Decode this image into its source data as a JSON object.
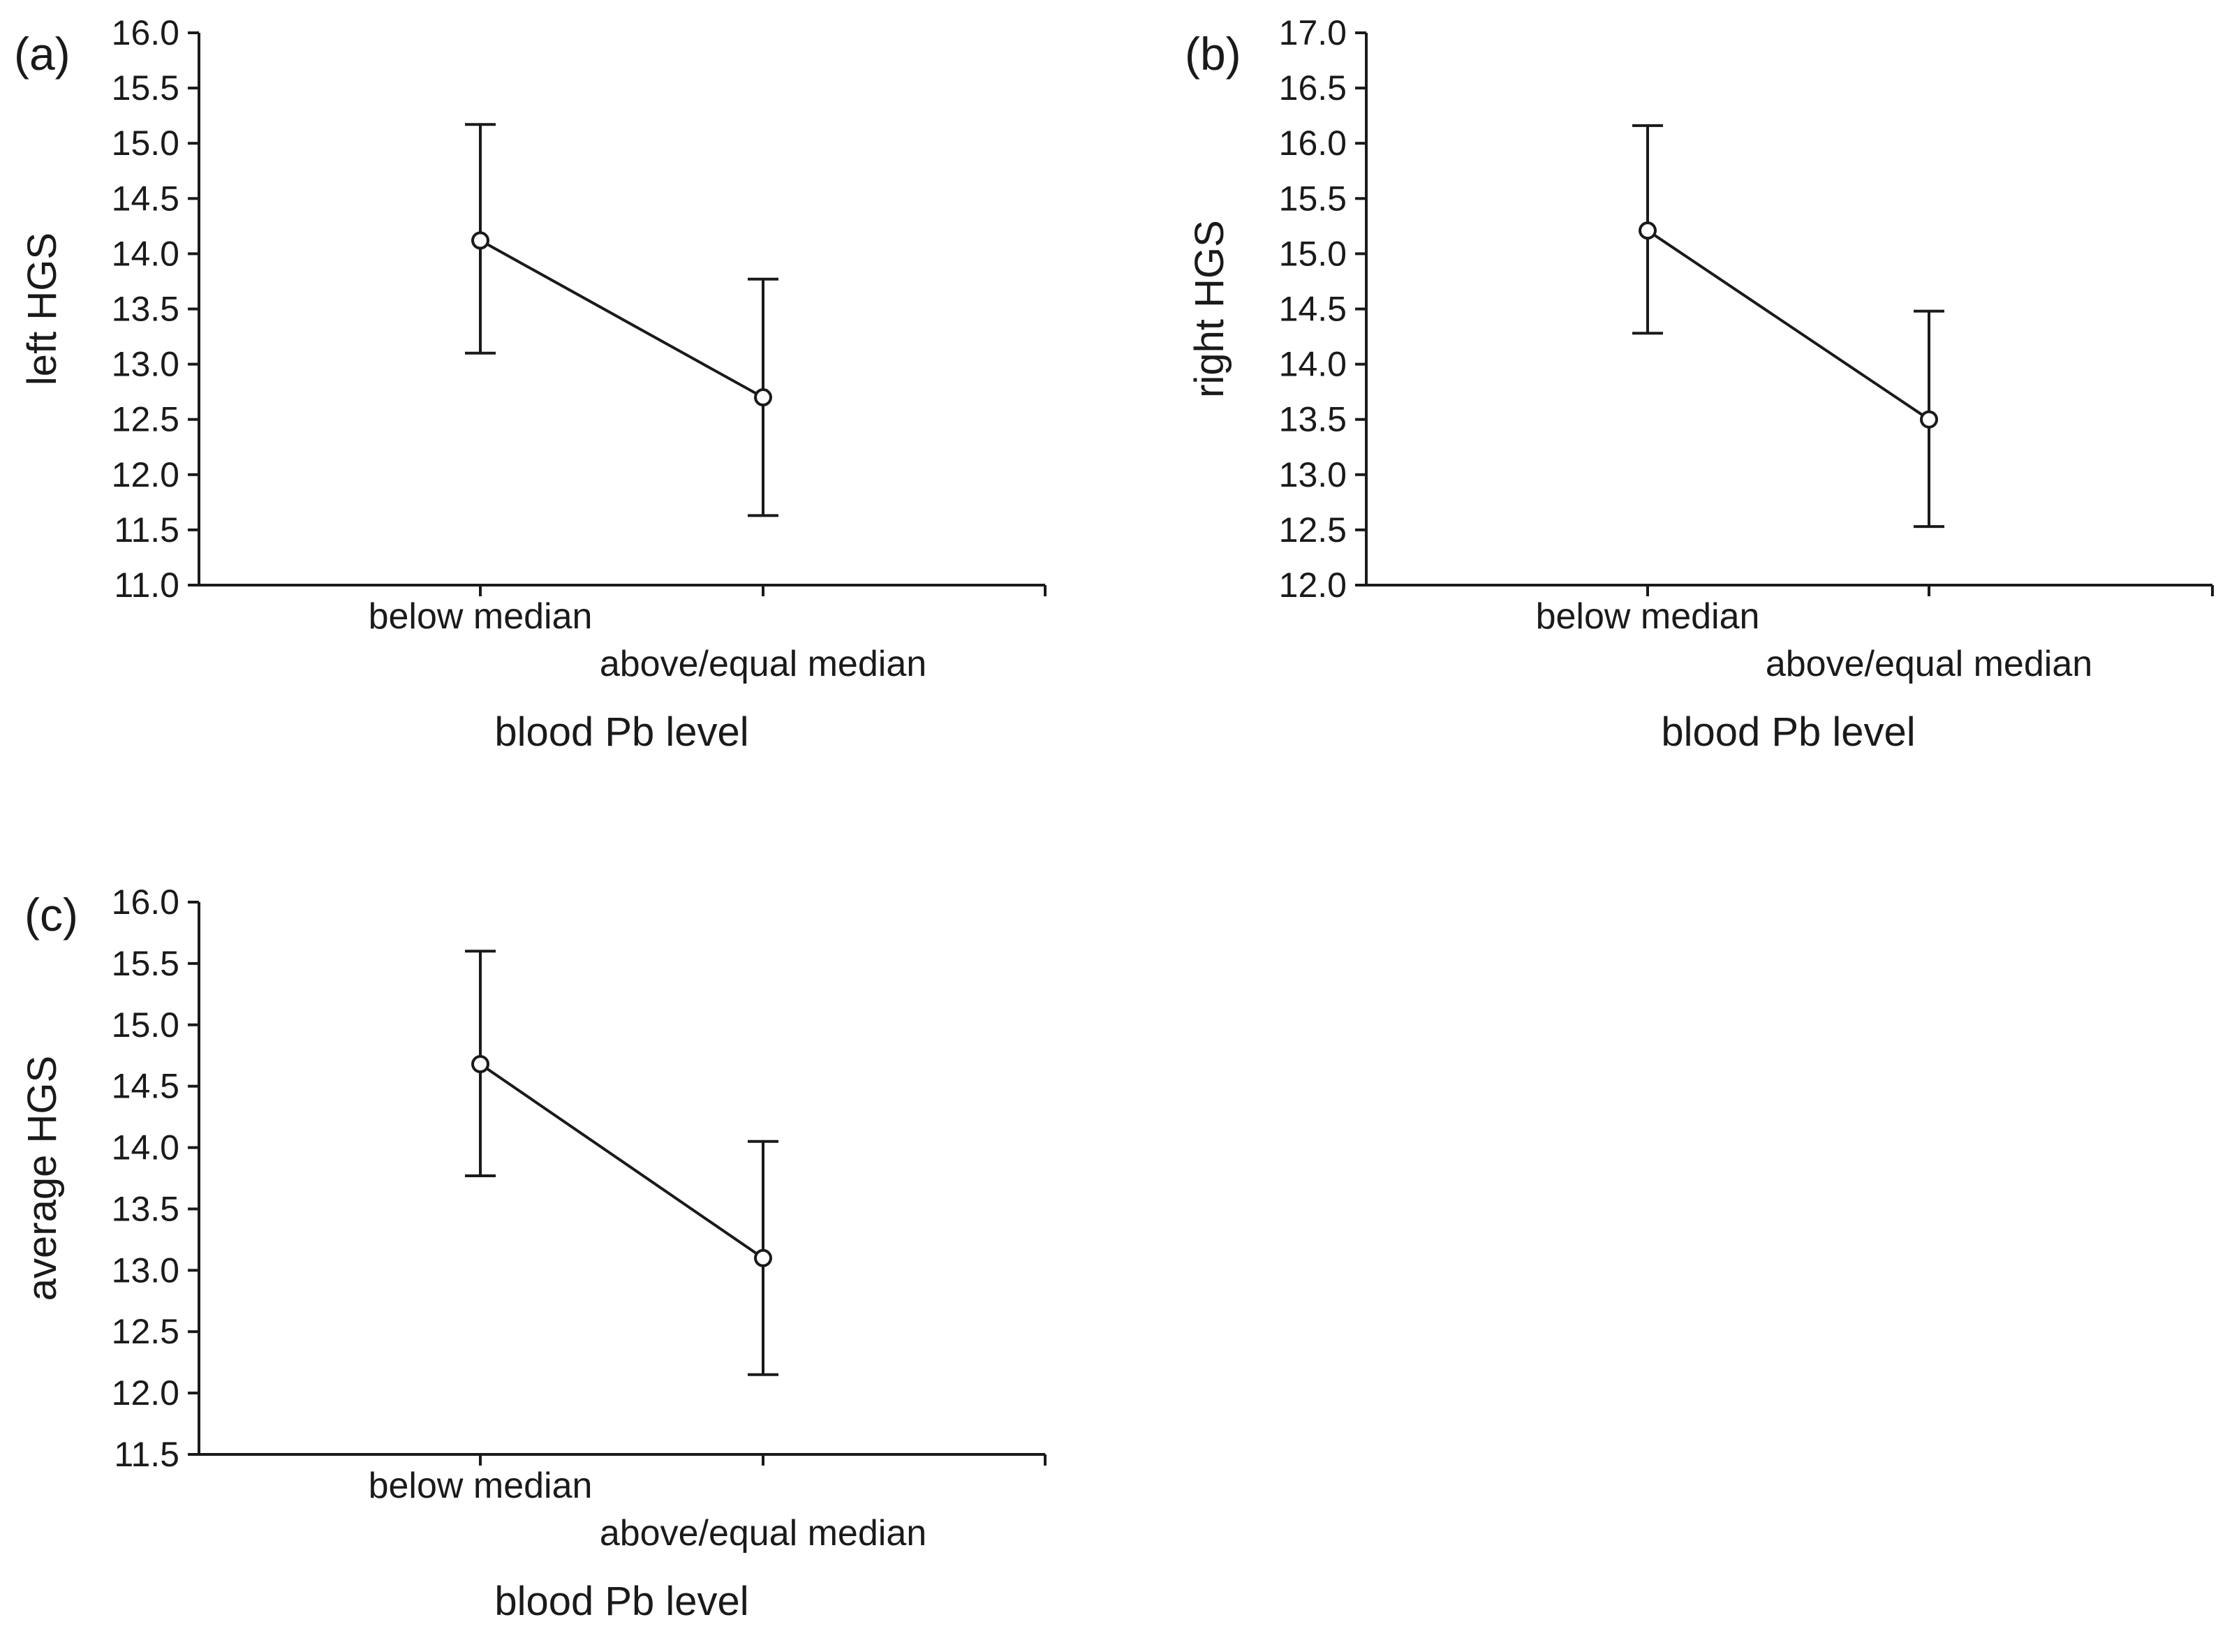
{
  "chart_data": [
    {
      "panel_label": "(a)",
      "type": "line",
      "categories": [
        "below median",
        "above/equal median"
      ],
      "series": [
        {
          "name": "left HGS",
          "values": [
            14.12,
            12.7
          ],
          "error_low": [
            13.1,
            11.63
          ],
          "error_high": [
            15.17,
            13.77
          ]
        }
      ],
      "xlabel": "blood Pb level",
      "ylabel": "left HGS",
      "ylim": [
        11.0,
        16.0
      ],
      "yticks": [
        "11.0",
        "11.5",
        "12.0",
        "12.5",
        "13.0",
        "13.5",
        "14.0",
        "14.5",
        "15.0",
        "15.5",
        "16.0"
      ],
      "grid": false
    },
    {
      "panel_label": "(b)",
      "type": "line",
      "categories": [
        "below median",
        "above/equal median"
      ],
      "series": [
        {
          "name": "right HGS",
          "values": [
            15.21,
            13.5
          ],
          "error_low": [
            14.28,
            12.53
          ],
          "error_high": [
            16.16,
            14.48
          ]
        }
      ],
      "xlabel": "blood Pb level",
      "ylabel": "right HGS",
      "ylim": [
        12.0,
        17.0
      ],
      "yticks": [
        "12.0",
        "12.5",
        "13.0",
        "13.5",
        "14.0",
        "14.5",
        "15.0",
        "15.5",
        "16.0",
        "16.5",
        "17.0"
      ],
      "grid": false
    },
    {
      "panel_label": "(c)",
      "type": "line",
      "categories": [
        "below median",
        "above/equal median"
      ],
      "series": [
        {
          "name": "average HGS",
          "values": [
            14.68,
            13.1
          ],
          "error_low": [
            13.77,
            12.15
          ],
          "error_high": [
            15.6,
            14.05
          ]
        }
      ],
      "xlabel": "blood Pb level",
      "ylabel": "average HGS",
      "ylim": [
        11.5,
        16.0
      ],
      "yticks": [
        "11.5",
        "12.0",
        "12.5",
        "13.0",
        "13.5",
        "14.0",
        "14.5",
        "15.0",
        "15.5",
        "16.0"
      ],
      "grid": false
    }
  ]
}
